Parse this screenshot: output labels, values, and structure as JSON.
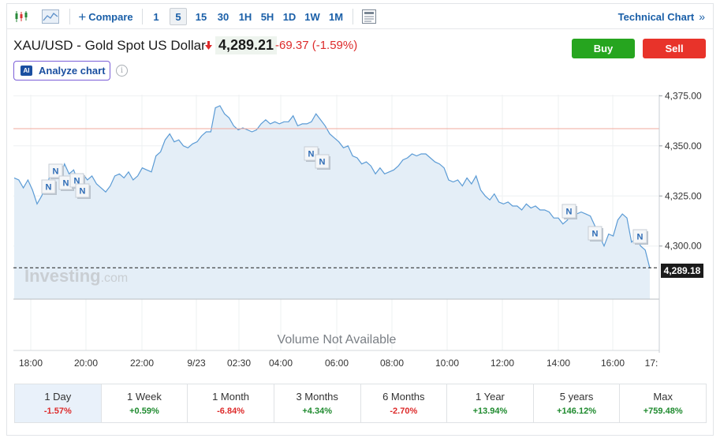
{
  "toolbar": {
    "compare_label": "Compare",
    "intervals": [
      "1",
      "5",
      "15",
      "30",
      "1H",
      "5H",
      "1D",
      "1W",
      "1M"
    ],
    "active_interval": "5",
    "technical_chart_label": "Technical Chart"
  },
  "header": {
    "title": "XAU/USD - Gold Spot US Dollar",
    "price": "4,289.21",
    "change": "-69.37",
    "change_pct": "(-1.59%)",
    "buy_label": "Buy",
    "sell_label": "Sell",
    "analyze_label": "Analyze chart",
    "ai_badge": "AI",
    "info_glyph": "i"
  },
  "chart_data": {
    "type": "area",
    "x_ticks": [
      "18:00",
      "20:00",
      "22:00",
      "9/23",
      "02:30",
      "04:00",
      "06:00",
      "08:00",
      "10:00",
      "12:00",
      "14:00",
      "16:00",
      "17:"
    ],
    "y_ticks": [
      "4,375.00",
      "4,350.00",
      "4,325.00",
      "4,300.00"
    ],
    "y_tick_values": [
      4375,
      4350,
      4325,
      4300
    ],
    "ylim": [
      4273.5,
      4377.5
    ],
    "current_value": "4,289.18",
    "reference_line_value": 4358.6,
    "volume_text": "Volume Not Available",
    "watermark": "Investing",
    "watermark_suffix": ".com",
    "news_marker_label": "N",
    "series_values": [
      4334,
      4333,
      4329,
      4333,
      4328,
      4321,
      4325,
      4330,
      4336,
      4337,
      4334,
      4341,
      4336,
      4338,
      4332,
      4336,
      4333,
      4335,
      4331,
      4329,
      4327,
      4330,
      4335,
      4336,
      4334,
      4337,
      4333,
      4335,
      4339,
      4338,
      4337,
      4345,
      4347,
      4353,
      4356,
      4352,
      4353,
      4350,
      4349,
      4351,
      4352,
      4355,
      4357,
      4357,
      4369,
      4370,
      4366,
      4364,
      4360,
      4358,
      4359,
      4358,
      4357,
      4358,
      4361,
      4363,
      4361,
      4362,
      4361,
      4362,
      4362,
      4365,
      4360,
      4361,
      4361,
      4362,
      4366,
      4363,
      4360,
      4356,
      4354,
      4352,
      4349,
      4350,
      4345,
      4344,
      4341,
      4342,
      4340,
      4336,
      4339,
      4336,
      4337,
      4338,
      4340,
      4343,
      4344,
      4346,
      4345,
      4346,
      4346,
      4344,
      4342,
      4341,
      4339,
      4333,
      4332,
      4333,
      4330,
      4334,
      4331,
      4335,
      4328,
      4325,
      4323,
      4326,
      4322,
      4321,
      4322,
      4320,
      4320,
      4318,
      4321,
      4319,
      4320,
      4318,
      4318,
      4317,
      4314,
      4314,
      4311,
      4313,
      4318,
      4316,
      4317,
      4316,
      4315,
      4310,
      4305,
      4300,
      4306,
      4305,
      4313,
      4316,
      4314,
      4302,
      4304,
      4300,
      4298,
      4289
    ]
  },
  "periods": [
    {
      "label": "1 Day",
      "value": "-1.57%",
      "dir": "neg"
    },
    {
      "label": "1 Week",
      "value": "+0.59%",
      "dir": "pos"
    },
    {
      "label": "1 Month",
      "value": "-6.84%",
      "dir": "neg"
    },
    {
      "label": "3 Months",
      "value": "+4.34%",
      "dir": "pos"
    },
    {
      "label": "6 Months",
      "value": "-2.70%",
      "dir": "neg"
    },
    {
      "label": "1 Year",
      "value": "+13.94%",
      "dir": "pos"
    },
    {
      "label": "5 years",
      "value": "+146.12%",
      "dir": "pos"
    },
    {
      "label": "Max",
      "value": "+759.48%",
      "dir": "pos"
    }
  ],
  "colors": {
    "line": "#5b9bd5",
    "fill": "#e4eef7",
    "reference_line": "#f2a89c",
    "negative": "#dd2b2b",
    "positive": "#1e8a2e",
    "buy": "#26a51f",
    "sell": "#e8332a"
  }
}
